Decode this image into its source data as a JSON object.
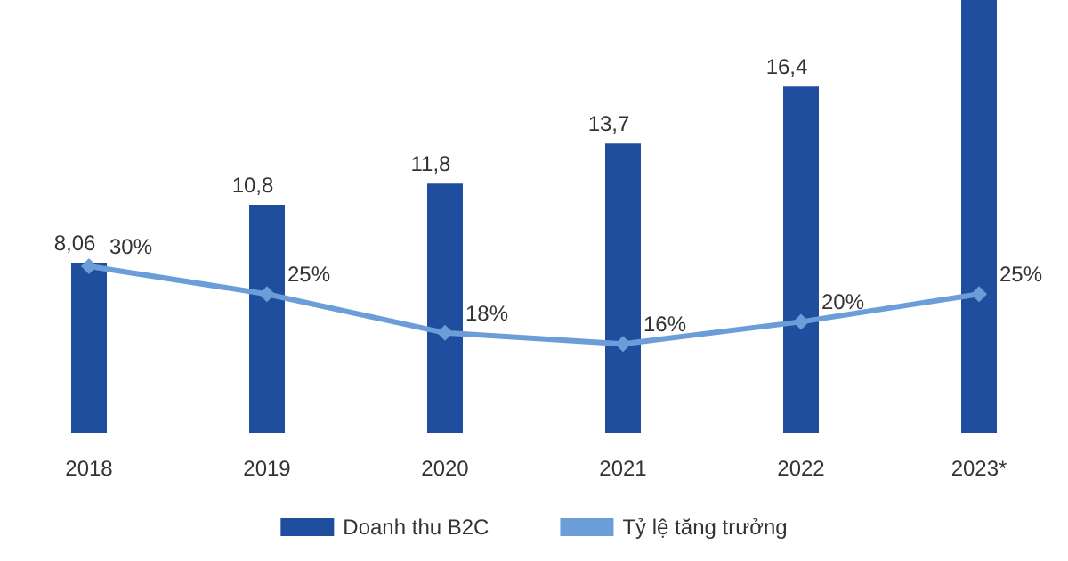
{
  "chart_data": {
    "type": "bar",
    "categories": [
      "2018",
      "2019",
      "2020",
      "2021",
      "2022",
      "2023*"
    ],
    "series": [
      {
        "name": "Doanh thu B2C",
        "color": "#1f4e9f",
        "values": [
          8.06,
          10.8,
          11.8,
          13.7,
          16.4,
          20.5
        ],
        "value_labels": [
          "8,06",
          "10,8",
          "11,8",
          "13,7",
          "16,4",
          null
        ]
      },
      {
        "name": "Tỷ lệ tăng trưởng",
        "type": "line",
        "axis": "y2",
        "color": "#6b9ed8",
        "marker": "diamond",
        "values": [
          30,
          25,
          18,
          16,
          20,
          25
        ],
        "value_labels": [
          "30%",
          "25%",
          "18%",
          "16%",
          "20%",
          "25%"
        ]
      }
    ],
    "ylim": [
      0,
      20.5
    ],
    "y2lim": [
      0,
      78
    ],
    "grid": false,
    "legend": "bottom"
  }
}
